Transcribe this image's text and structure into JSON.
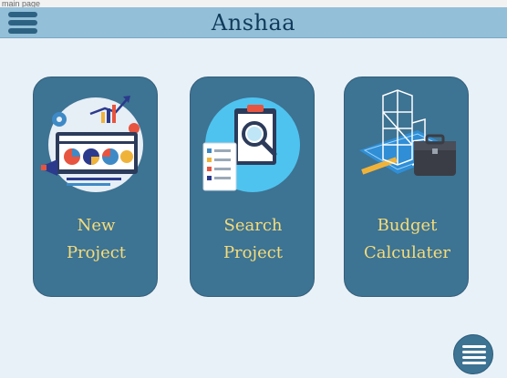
{
  "window": {
    "title": "main page"
  },
  "header": {
    "title": "Anshaa",
    "menu_icon": "hamburger-menu-icon"
  },
  "cards": [
    {
      "line1": "New",
      "line2": "Project",
      "icon": "analytics-dashboard-illustration"
    },
    {
      "line1": "Search",
      "line2": "Project",
      "icon": "clipboard-magnifier-illustration"
    },
    {
      "line1": "Budget",
      "line2": "Calculater",
      "icon": "building-blueprint-briefcase-illustration"
    }
  ],
  "fab": {
    "icon": "menu-lines-icon"
  },
  "colors": {
    "header": "#93bfd8",
    "title": "#113a5a",
    "card": "#3d7393",
    "card_text": "#f5dc7a",
    "background": "#e8f1f8"
  }
}
